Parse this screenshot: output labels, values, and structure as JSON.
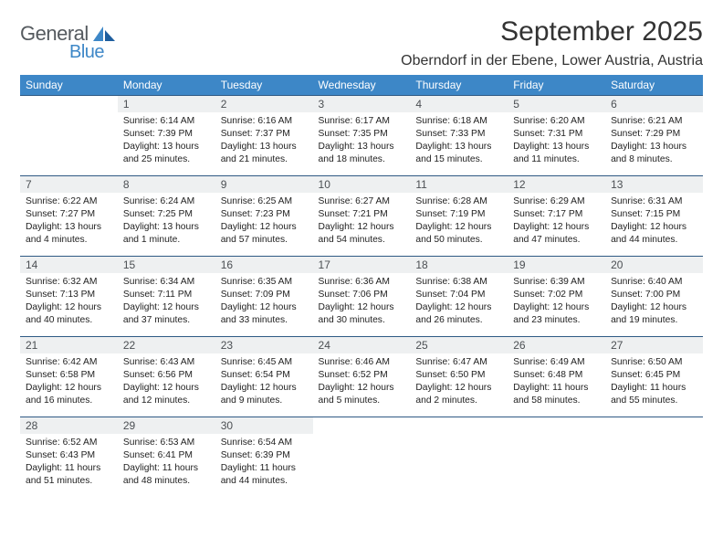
{
  "brand": {
    "general": "General",
    "blue": "Blue"
  },
  "title": "September 2025",
  "location": "Oberndorf in der Ebene, Lower Austria, Austria",
  "colors": {
    "header_bg": "#3d87c7",
    "header_text": "#ffffff",
    "daynum_bg": "#eef0f1",
    "daynum_text": "#4b4f53",
    "row_border": "#2f5a84",
    "body_text": "#222222",
    "title_text": "#333333",
    "page_bg": "#ffffff"
  },
  "typography": {
    "title_fontsize": 30,
    "location_fontsize": 16,
    "header_fontsize": 12,
    "daynum_fontsize": 12,
    "body_fontsize": 10.3
  },
  "dow": [
    "Sunday",
    "Monday",
    "Tuesday",
    "Wednesday",
    "Thursday",
    "Friday",
    "Saturday"
  ],
  "weeks": [
    [
      null,
      {
        "n": "1",
        "sr": "Sunrise: 6:14 AM",
        "ss": "Sunset: 7:39 PM",
        "dl": "Daylight: 13 hours and 25 minutes."
      },
      {
        "n": "2",
        "sr": "Sunrise: 6:16 AM",
        "ss": "Sunset: 7:37 PM",
        "dl": "Daylight: 13 hours and 21 minutes."
      },
      {
        "n": "3",
        "sr": "Sunrise: 6:17 AM",
        "ss": "Sunset: 7:35 PM",
        "dl": "Daylight: 13 hours and 18 minutes."
      },
      {
        "n": "4",
        "sr": "Sunrise: 6:18 AM",
        "ss": "Sunset: 7:33 PM",
        "dl": "Daylight: 13 hours and 15 minutes."
      },
      {
        "n": "5",
        "sr": "Sunrise: 6:20 AM",
        "ss": "Sunset: 7:31 PM",
        "dl": "Daylight: 13 hours and 11 minutes."
      },
      {
        "n": "6",
        "sr": "Sunrise: 6:21 AM",
        "ss": "Sunset: 7:29 PM",
        "dl": "Daylight: 13 hours and 8 minutes."
      }
    ],
    [
      {
        "n": "7",
        "sr": "Sunrise: 6:22 AM",
        "ss": "Sunset: 7:27 PM",
        "dl": "Daylight: 13 hours and 4 minutes."
      },
      {
        "n": "8",
        "sr": "Sunrise: 6:24 AM",
        "ss": "Sunset: 7:25 PM",
        "dl": "Daylight: 13 hours and 1 minute."
      },
      {
        "n": "9",
        "sr": "Sunrise: 6:25 AM",
        "ss": "Sunset: 7:23 PM",
        "dl": "Daylight: 12 hours and 57 minutes."
      },
      {
        "n": "10",
        "sr": "Sunrise: 6:27 AM",
        "ss": "Sunset: 7:21 PM",
        "dl": "Daylight: 12 hours and 54 minutes."
      },
      {
        "n": "11",
        "sr": "Sunrise: 6:28 AM",
        "ss": "Sunset: 7:19 PM",
        "dl": "Daylight: 12 hours and 50 minutes."
      },
      {
        "n": "12",
        "sr": "Sunrise: 6:29 AM",
        "ss": "Sunset: 7:17 PM",
        "dl": "Daylight: 12 hours and 47 minutes."
      },
      {
        "n": "13",
        "sr": "Sunrise: 6:31 AM",
        "ss": "Sunset: 7:15 PM",
        "dl": "Daylight: 12 hours and 44 minutes."
      }
    ],
    [
      {
        "n": "14",
        "sr": "Sunrise: 6:32 AM",
        "ss": "Sunset: 7:13 PM",
        "dl": "Daylight: 12 hours and 40 minutes."
      },
      {
        "n": "15",
        "sr": "Sunrise: 6:34 AM",
        "ss": "Sunset: 7:11 PM",
        "dl": "Daylight: 12 hours and 37 minutes."
      },
      {
        "n": "16",
        "sr": "Sunrise: 6:35 AM",
        "ss": "Sunset: 7:09 PM",
        "dl": "Daylight: 12 hours and 33 minutes."
      },
      {
        "n": "17",
        "sr": "Sunrise: 6:36 AM",
        "ss": "Sunset: 7:06 PM",
        "dl": "Daylight: 12 hours and 30 minutes."
      },
      {
        "n": "18",
        "sr": "Sunrise: 6:38 AM",
        "ss": "Sunset: 7:04 PM",
        "dl": "Daylight: 12 hours and 26 minutes."
      },
      {
        "n": "19",
        "sr": "Sunrise: 6:39 AM",
        "ss": "Sunset: 7:02 PM",
        "dl": "Daylight: 12 hours and 23 minutes."
      },
      {
        "n": "20",
        "sr": "Sunrise: 6:40 AM",
        "ss": "Sunset: 7:00 PM",
        "dl": "Daylight: 12 hours and 19 minutes."
      }
    ],
    [
      {
        "n": "21",
        "sr": "Sunrise: 6:42 AM",
        "ss": "Sunset: 6:58 PM",
        "dl": "Daylight: 12 hours and 16 minutes."
      },
      {
        "n": "22",
        "sr": "Sunrise: 6:43 AM",
        "ss": "Sunset: 6:56 PM",
        "dl": "Daylight: 12 hours and 12 minutes."
      },
      {
        "n": "23",
        "sr": "Sunrise: 6:45 AM",
        "ss": "Sunset: 6:54 PM",
        "dl": "Daylight: 12 hours and 9 minutes."
      },
      {
        "n": "24",
        "sr": "Sunrise: 6:46 AM",
        "ss": "Sunset: 6:52 PM",
        "dl": "Daylight: 12 hours and 5 minutes."
      },
      {
        "n": "25",
        "sr": "Sunrise: 6:47 AM",
        "ss": "Sunset: 6:50 PM",
        "dl": "Daylight: 12 hours and 2 minutes."
      },
      {
        "n": "26",
        "sr": "Sunrise: 6:49 AM",
        "ss": "Sunset: 6:48 PM",
        "dl": "Daylight: 11 hours and 58 minutes."
      },
      {
        "n": "27",
        "sr": "Sunrise: 6:50 AM",
        "ss": "Sunset: 6:45 PM",
        "dl": "Daylight: 11 hours and 55 minutes."
      }
    ],
    [
      {
        "n": "28",
        "sr": "Sunrise: 6:52 AM",
        "ss": "Sunset: 6:43 PM",
        "dl": "Daylight: 11 hours and 51 minutes."
      },
      {
        "n": "29",
        "sr": "Sunrise: 6:53 AM",
        "ss": "Sunset: 6:41 PM",
        "dl": "Daylight: 11 hours and 48 minutes."
      },
      {
        "n": "30",
        "sr": "Sunrise: 6:54 AM",
        "ss": "Sunset: 6:39 PM",
        "dl": "Daylight: 11 hours and 44 minutes."
      },
      null,
      null,
      null,
      null
    ]
  ]
}
